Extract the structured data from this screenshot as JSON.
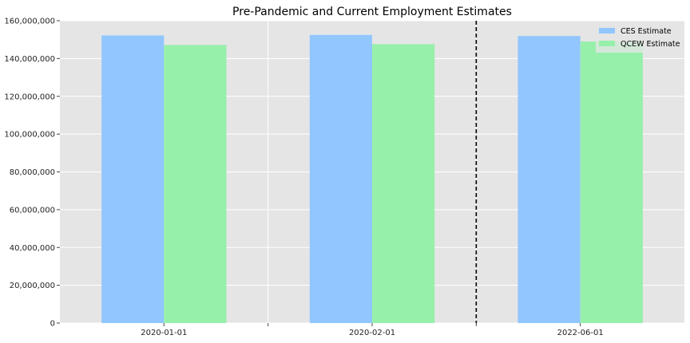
{
  "chart_data": {
    "type": "bar",
    "title": "Pre-Pandemic and Current Employment Estimates",
    "xlabel": "",
    "ylabel": "",
    "categories": [
      "2020-01-01",
      "2020-02-01",
      "2022-06-01"
    ],
    "series": [
      {
        "name": "CES Estimate",
        "color": "#92c6ff",
        "values": [
          152200000,
          152500000,
          151900000
        ]
      },
      {
        "name": "QCEW Estimate",
        "color": "#97f0aa",
        "values": [
          147200000,
          147600000,
          149000000
        ]
      }
    ],
    "ylim": [
      0,
      160000000
    ],
    "yticks": [
      0,
      20000000,
      40000000,
      60000000,
      80000000,
      100000000,
      120000000,
      140000000,
      160000000
    ],
    "ytick_labels": [
      "0",
      "20,000,000",
      "40,000,000",
      "60,000,000",
      "80,000,000",
      "100,000,000",
      "120,000,000",
      "140,000,000",
      "160,000,000"
    ],
    "grid": true,
    "background": "#e5e5e5",
    "legend_position": "top-right",
    "vertical_line": {
      "between": [
        "2020-02-01",
        "2022-06-01"
      ],
      "style": "dashed",
      "color": "#000000"
    }
  }
}
